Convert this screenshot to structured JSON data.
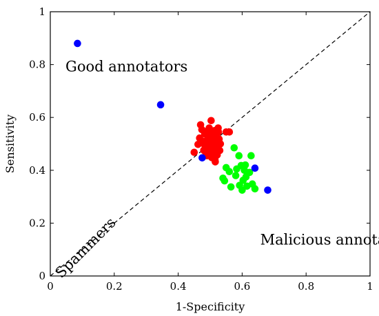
{
  "chart_data": {
    "type": "scatter",
    "xlabel": "1-Specificity",
    "ylabel": "Sensitivity",
    "xlim": [
      0,
      1
    ],
    "ylim": [
      0,
      1
    ],
    "x_ticks": [
      "0",
      "0.2",
      "0.4",
      "0.6",
      "0.8",
      "1"
    ],
    "y_ticks": [
      "0",
      "0.2",
      "0.4",
      "0.6",
      "0.8",
      "1"
    ],
    "grid": false,
    "diagonal_line": {
      "x": [
        0,
        1
      ],
      "y": [
        0,
        1
      ],
      "style": "dashed"
    },
    "annotations": [
      {
        "text": "Good annotators",
        "x": 0.12,
        "y": 0.79
      },
      {
        "text": "Malicious annotators",
        "x": 0.78,
        "y": 0.135
      },
      {
        "text": "Spammers",
        "x": 0.11,
        "y": 0.12,
        "rotation": 45
      }
    ],
    "series": [
      {
        "color": "#0000ff",
        "points": [
          [
            0.085,
            0.88
          ],
          [
            0.345,
            0.648
          ],
          [
            0.475,
            0.447
          ],
          [
            0.64,
            0.408
          ],
          [
            0.68,
            0.325
          ]
        ]
      },
      {
        "color": "#ff0000",
        "points": [
          [
            0.45,
            0.468
          ],
          [
            0.462,
            0.498
          ],
          [
            0.467,
            0.522
          ],
          [
            0.47,
            0.572
          ],
          [
            0.474,
            0.554
          ],
          [
            0.478,
            0.51
          ],
          [
            0.48,
            0.476
          ],
          [
            0.483,
            0.538
          ],
          [
            0.486,
            0.495
          ],
          [
            0.49,
            0.455
          ],
          [
            0.49,
            0.548
          ],
          [
            0.493,
            0.52
          ],
          [
            0.496,
            0.484
          ],
          [
            0.498,
            0.465
          ],
          [
            0.5,
            0.54
          ],
          [
            0.502,
            0.505
          ],
          [
            0.503,
            0.588
          ],
          [
            0.505,
            0.448
          ],
          [
            0.507,
            0.527
          ],
          [
            0.51,
            0.495
          ],
          [
            0.512,
            0.472
          ],
          [
            0.514,
            0.55
          ],
          [
            0.516,
            0.432
          ],
          [
            0.518,
            0.51
          ],
          [
            0.52,
            0.53
          ],
          [
            0.522,
            0.458
          ],
          [
            0.524,
            0.49
          ],
          [
            0.526,
            0.545
          ],
          [
            0.528,
            0.518
          ],
          [
            0.53,
            0.475
          ],
          [
            0.532,
            0.5
          ],
          [
            0.485,
            0.47
          ],
          [
            0.497,
            0.56
          ],
          [
            0.509,
            0.54
          ],
          [
            0.492,
            0.51
          ],
          [
            0.515,
            0.44
          ],
          [
            0.55,
            0.545
          ],
          [
            0.56,
            0.545
          ],
          [
            0.525,
            0.56
          ],
          [
            0.48,
            0.5
          ]
        ]
      },
      {
        "color": "#00ff00",
        "points": [
          [
            0.54,
            0.37
          ],
          [
            0.545,
            0.36
          ],
          [
            0.55,
            0.41
          ],
          [
            0.56,
            0.395
          ],
          [
            0.565,
            0.337
          ],
          [
            0.575,
            0.485
          ],
          [
            0.58,
            0.38
          ],
          [
            0.583,
            0.405
          ],
          [
            0.59,
            0.455
          ],
          [
            0.592,
            0.343
          ],
          [
            0.597,
            0.418
          ],
          [
            0.6,
            0.325
          ],
          [
            0.603,
            0.362
          ],
          [
            0.607,
            0.4
          ],
          [
            0.612,
            0.375
          ],
          [
            0.615,
            0.34
          ],
          [
            0.623,
            0.392
          ],
          [
            0.628,
            0.455
          ],
          [
            0.632,
            0.348
          ],
          [
            0.64,
            0.33
          ],
          [
            0.61,
            0.42
          ]
        ]
      }
    ]
  }
}
